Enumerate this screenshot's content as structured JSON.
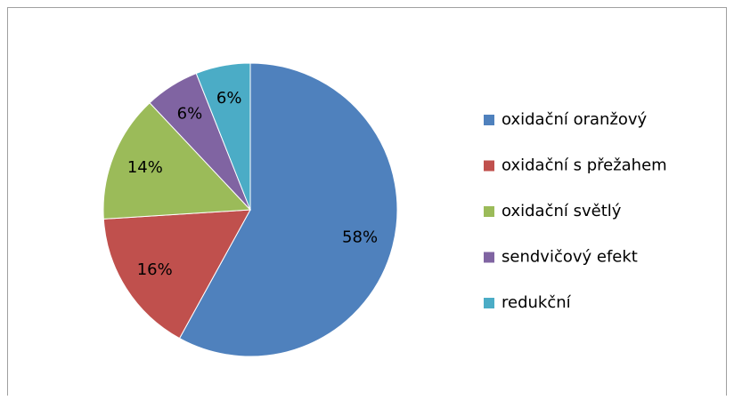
{
  "chart_data": {
    "type": "pie",
    "categories": [
      "oxidační oranžový",
      "oxidační s přežahem",
      "oxidační světlý",
      "sendvičový efekt",
      "redukční"
    ],
    "values": [
      58,
      16,
      14,
      6,
      6
    ],
    "value_labels": [
      "58%",
      "16%",
      "14%",
      "6%",
      "6%"
    ],
    "colors": [
      "#4f81bd",
      "#c0504d",
      "#9bbb59",
      "#8064a2",
      "#4bacc6"
    ],
    "legend": "right"
  }
}
